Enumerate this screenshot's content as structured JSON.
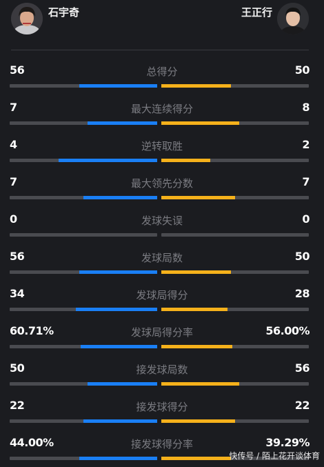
{
  "players": {
    "left": {
      "name": "石宇奇"
    },
    "right": {
      "name": "王正行"
    }
  },
  "colors": {
    "left_bar": "#1a7ff5",
    "right_bar": "#f5b11b",
    "track": "#4a4b50",
    "background": "#1b1c20"
  },
  "stats": [
    {
      "label": "总得分",
      "left": "56",
      "right": "50",
      "left_share": 0.53,
      "right_share": 0.47
    },
    {
      "label": "最大连续得分",
      "left": "7",
      "right": "8",
      "left_share": 0.47,
      "right_share": 0.53
    },
    {
      "label": "逆转取胜",
      "left": "4",
      "right": "2",
      "left_share": 0.67,
      "right_share": 0.33
    },
    {
      "label": "最大领先分数",
      "left": "7",
      "right": "7",
      "left_share": 0.5,
      "right_share": 0.5
    },
    {
      "label": "发球失误",
      "left": "0",
      "right": "0",
      "left_share": 0,
      "right_share": 0
    },
    {
      "label": "发球局数",
      "left": "56",
      "right": "50",
      "left_share": 0.53,
      "right_share": 0.47
    },
    {
      "label": "发球局得分",
      "left": "34",
      "right": "28",
      "left_share": 0.55,
      "right_share": 0.45
    },
    {
      "label": "发球局得分率",
      "left": "60.71%",
      "right": "56.00%",
      "left_share": 0.52,
      "right_share": 0.48
    },
    {
      "label": "接发球局数",
      "left": "50",
      "right": "56",
      "left_share": 0.47,
      "right_share": 0.53
    },
    {
      "label": "接发球得分",
      "left": "22",
      "right": "22",
      "left_share": 0.5,
      "right_share": 0.5
    },
    {
      "label": "接发球得分率",
      "left": "44.00%",
      "right": "39.29%",
      "left_share": 0.53,
      "right_share": 0.47
    }
  ],
  "watermark": "快传号 / 陌上花开谈体育"
}
